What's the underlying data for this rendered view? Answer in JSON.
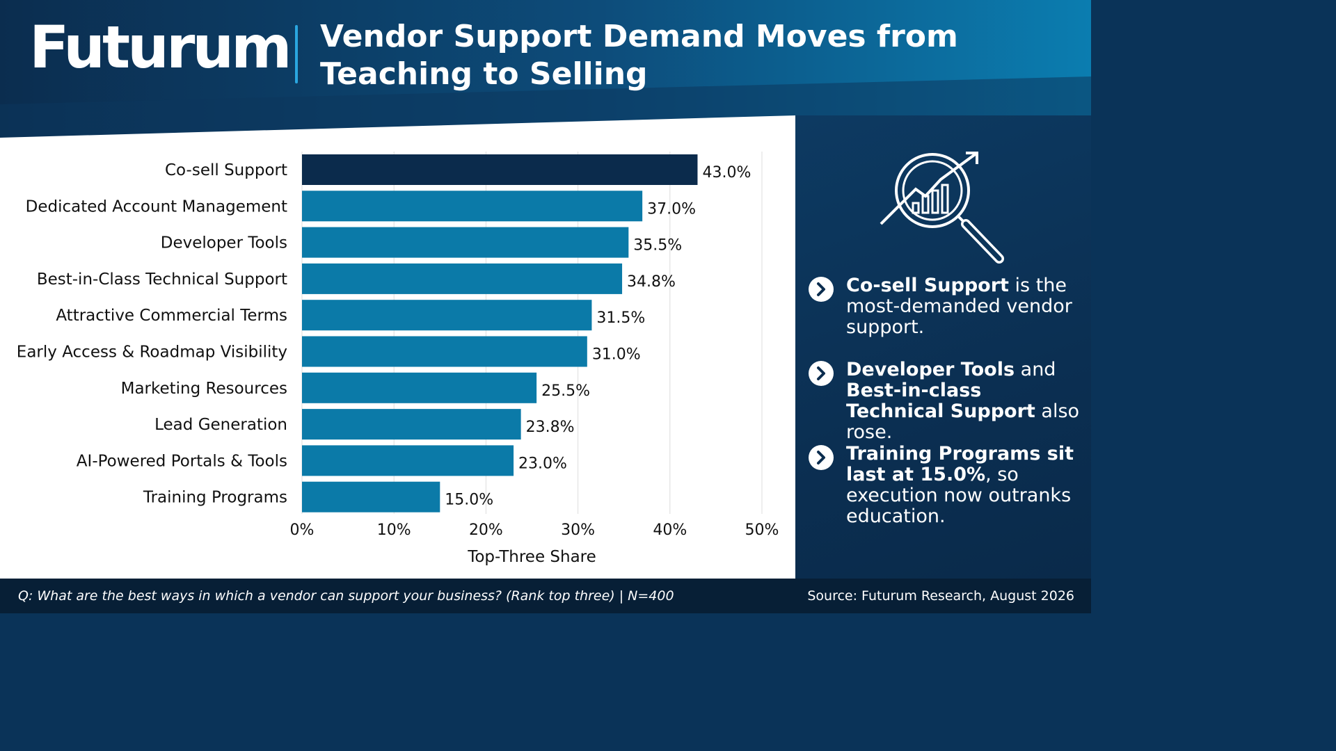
{
  "header": {
    "logo_text": "Futurum",
    "title_line1": "Vendor Support Demand Moves from",
    "title_line2": "Teaching to Selling"
  },
  "chart_data": {
    "type": "bar",
    "orientation": "horizontal",
    "categories": [
      "Co-sell Support",
      "Dedicated Account Management",
      "Developer Tools",
      "Best-in-Class Technical Support",
      "Attractive Commercial Terms",
      "Early Access & Roadmap Visibility",
      "Marketing Resources",
      "Lead Generation",
      "AI-Powered Portals & Tools",
      "Training Programs"
    ],
    "values": [
      43.0,
      37.0,
      35.5,
      34.8,
      31.5,
      31.0,
      25.5,
      23.8,
      23.0,
      15.0
    ],
    "value_labels": [
      "43.0%",
      "37.0%",
      "35.5%",
      "34.8%",
      "31.5%",
      "31.0%",
      "25.5%",
      "23.8%",
      "23.0%",
      "15.0%"
    ],
    "xlabel": "Top-Three Share",
    "ylabel": "",
    "xlim": [
      0,
      50
    ],
    "x_ticks": [
      "0%",
      "10%",
      "20%",
      "30%",
      "40%",
      "50%"
    ],
    "grid": "vertical",
    "colors": {
      "highlight": "#0b2b4c",
      "default": "#0b7aa8"
    }
  },
  "sidebar": {
    "icon": "magnifier-growth-chart-icon",
    "bullets": [
      {
        "bold": "Co-sell Support",
        "rest": " is the most-demanded vendor support."
      },
      {
        "bold": "Developer Tools",
        "mid": " and ",
        "bold2": "Best-in-class Technical Support",
        "rest": " also rose."
      },
      {
        "bold": "Training Programs sit last at 15.0%",
        "rest": ", so execution now outranks education."
      }
    ]
  },
  "footer": {
    "question": "Q: What are the best ways in which a vendor can support your business? (Rank top three) | N=400",
    "source": "Source: Futurum Research, August 2026"
  }
}
